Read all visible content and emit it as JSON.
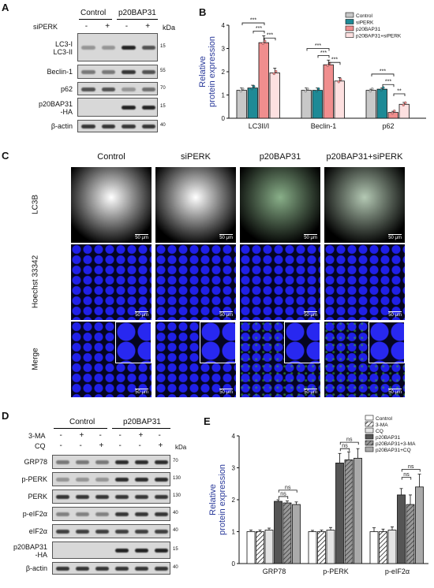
{
  "panel_labels": {
    "a": "A",
    "b": "B",
    "c": "C",
    "d": "D",
    "e": "E"
  },
  "panel_a": {
    "group1": "Control",
    "group2": "p20BAP31",
    "treat_label": "siPERK",
    "treat_marks": [
      "-",
      "+",
      "-",
      "+"
    ],
    "kda_label": "kDa",
    "rows": [
      {
        "label": "LC3-I\nLC3-II",
        "kda": "15",
        "bands": [
          0.35,
          0.35,
          0.95,
          0.7
        ]
      },
      {
        "label": "Beclin-1",
        "kda": "55",
        "bands": [
          0.5,
          0.5,
          0.85,
          0.7
        ]
      },
      {
        "label": "p62",
        "kda": "70",
        "bands": [
          0.7,
          0.7,
          0.35,
          0.55
        ]
      },
      {
        "label": "p20BAP31\n-HA",
        "kda": "15",
        "bands": [
          0,
          0,
          0.95,
          0.95
        ]
      },
      {
        "label": "β-actin",
        "kda": "40",
        "bands": [
          0.85,
          0.85,
          0.85,
          0.85
        ]
      }
    ]
  },
  "panel_c": {
    "columns": [
      "Control",
      "siPERK",
      "p20BAP31",
      "p20BAP31+siPERK"
    ],
    "rows": [
      "LC3B",
      "Hoechst 33342",
      "Merge"
    ],
    "scale_bar": "50 μm"
  },
  "panel_d": {
    "group1": "Control",
    "group2": "p20BAP31",
    "treat1_label": "3-MA",
    "treat1_marks": [
      "-",
      "+",
      "-",
      "-",
      "+",
      "-"
    ],
    "treat2_label": "CQ",
    "treat2_marks": [
      "-",
      "-",
      "+",
      "-",
      "-",
      "+"
    ],
    "kda_label": "kDa",
    "rows": [
      {
        "label": "GRP78",
        "kda": "70",
        "bands": [
          0.5,
          0.5,
          0.5,
          0.9,
          0.9,
          0.9
        ]
      },
      {
        "label": "p-PERK",
        "kda": "130",
        "bands": [
          0.35,
          0.35,
          0.35,
          0.9,
          0.9,
          0.9
        ]
      },
      {
        "label": "PERK",
        "kda": "130",
        "bands": [
          0.85,
          0.85,
          0.85,
          0.85,
          0.85,
          0.85
        ]
      },
      {
        "label": "p-eIF2α",
        "kda": "40",
        "bands": [
          0.45,
          0.45,
          0.45,
          0.85,
          0.85,
          0.85
        ]
      },
      {
        "label": "eIF2α",
        "kda": "40",
        "bands": [
          0.8,
          0.8,
          0.8,
          0.8,
          0.8,
          0.8
        ]
      },
      {
        "label": "p20BAP31\n-HA",
        "kda": "15",
        "bands": [
          0,
          0,
          0,
          0.95,
          0.95,
          0.95
        ]
      },
      {
        "label": "β-actin",
        "kda": "40",
        "bands": [
          0.85,
          0.85,
          0.85,
          0.85,
          0.85,
          0.85
        ]
      }
    ]
  },
  "chart_data": [
    {
      "type": "bar",
      "panel": "B",
      "ylabel": "Relative\nprotein expression",
      "ylim": [
        0,
        4
      ],
      "yticks": [
        0,
        1,
        2,
        3,
        4
      ],
      "categories": [
        "LC3II/I",
        "Beclin-1",
        "p62"
      ],
      "series": [
        {
          "name": "Control",
          "color": "#c8c8c8",
          "values": [
            1.2,
            1.2,
            1.2
          ],
          "errors": [
            0.1,
            0.1,
            0.05
          ]
        },
        {
          "name": "siPERK",
          "color": "#1e8a96",
          "values": [
            1.3,
            1.2,
            1.25
          ],
          "errors": [
            0.12,
            0.1,
            0.05
          ]
        },
        {
          "name": "p20BAP31",
          "color": "#f08e8e",
          "values": [
            3.25,
            2.3,
            0.25
          ],
          "errors": [
            0.3,
            0.2,
            0.05
          ]
        },
        {
          "name": "p20BAP31+siPERK",
          "color": "#fde0e0",
          "values": [
            1.95,
            1.6,
            0.6
          ],
          "errors": [
            0.2,
            0.15,
            0.08
          ]
        }
      ],
      "significance": [
        "***",
        "***",
        "***",
        "***",
        "***",
        "***",
        "***",
        "***",
        "**"
      ],
      "grid": false,
      "legend": "top-right"
    },
    {
      "type": "bar",
      "panel": "E",
      "ylabel": "Relative\nprotein expression",
      "ylim": [
        0,
        4
      ],
      "yticks": [
        0,
        1,
        2,
        3,
        4
      ],
      "categories": [
        "GRP78",
        "p-PERK",
        "p-eIF2α"
      ],
      "series": [
        {
          "name": "Control",
          "pattern": "white",
          "values": [
            1.0,
            1.0,
            1.0
          ],
          "errors": [
            0.05,
            0.04,
            0.12
          ]
        },
        {
          "name": "3-MA",
          "pattern": "hatch",
          "values": [
            1.0,
            1.0,
            1.0
          ],
          "errors": [
            0.05,
            0.05,
            0.08
          ]
        },
        {
          "name": "CQ",
          "pattern": "light",
          "values": [
            1.05,
            1.05,
            1.05
          ],
          "errors": [
            0.06,
            0.08,
            0.1
          ]
        },
        {
          "name": "p20BAP31",
          "pattern": "dark",
          "values": [
            1.95,
            3.15,
            2.15
          ],
          "errors": [
            0.05,
            0.3,
            0.2
          ]
        },
        {
          "name": "p20BAP31+3-MA",
          "pattern": "darkhatch",
          "values": [
            1.9,
            3.25,
            1.85
          ],
          "errors": [
            0.06,
            0.25,
            0.3
          ]
        },
        {
          "name": "p20BAP31+CQ",
          "pattern": "midgray",
          "values": [
            1.85,
            3.3,
            2.4
          ],
          "errors": [
            0.08,
            0.3,
            0.4
          ]
        }
      ],
      "significance": [
        "ns",
        "ns",
        "ns",
        "ns",
        "ns",
        "ns"
      ],
      "grid": false,
      "legend": "top-right"
    }
  ]
}
